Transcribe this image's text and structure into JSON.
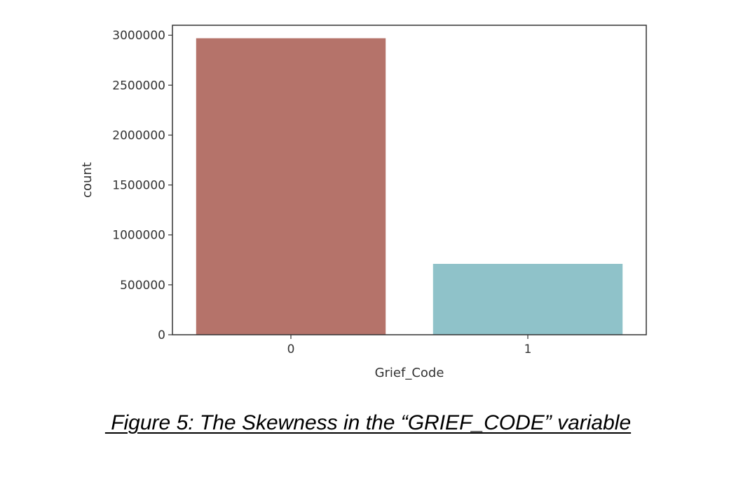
{
  "chart_data": {
    "type": "bar",
    "categories": [
      "0",
      "1"
    ],
    "values": [
      2970000,
      710000
    ],
    "colors": [
      "#b5736a",
      "#8fc2c9"
    ],
    "xlabel": "Grief_Code",
    "ylabel": "count",
    "ylim": [
      0,
      3100000
    ],
    "yticks": [
      0,
      500000,
      1000000,
      1500000,
      2000000,
      2500000,
      3000000
    ],
    "ytick_labels": [
      "0",
      "500000",
      "1000000",
      "1500000",
      "2000000",
      "2500000",
      "3000000"
    ],
    "grid": false,
    "legend": "none"
  },
  "caption": " Figure 5: The Skewness in the “GRIEF_CODE” variable"
}
